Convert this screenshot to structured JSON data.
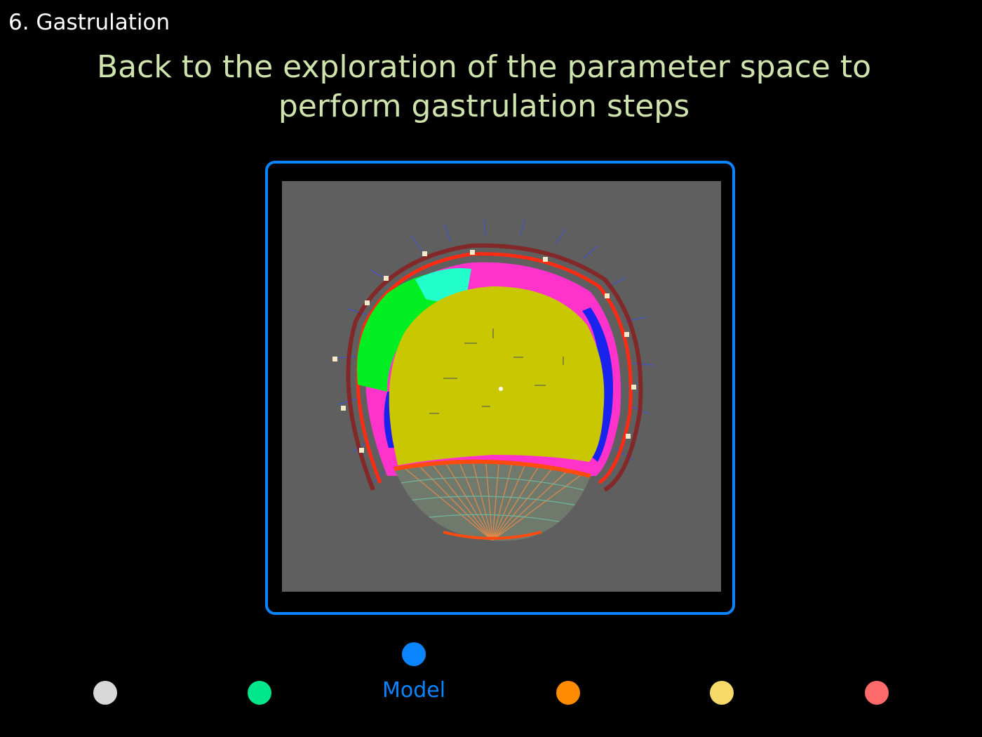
{
  "header": {
    "section": "6. Gastrulation",
    "title_line1": "Back to the exploration of the parameter space to",
    "title_line2": "perform gastrulation steps"
  },
  "colors": {
    "background": "#000000",
    "title": "#cfe3ad",
    "frame_border": "#0a84ff",
    "viewport_bg": "#5f5f5f",
    "active_nav": "#0a84ff"
  },
  "nav": {
    "active_label": "Model",
    "dots": [
      {
        "id": "nav-dot-1",
        "color": "#d8d8d8"
      },
      {
        "id": "nav-dot-2",
        "color": "#00e68a"
      },
      {
        "id": "nav-dot-model",
        "color": "#0a84ff",
        "active": true
      },
      {
        "id": "nav-dot-4",
        "color": "#ff8c00"
      },
      {
        "id": "nav-dot-5",
        "color": "#f7d96a"
      },
      {
        "id": "nav-dot-6",
        "color": "#ff6b6b"
      }
    ]
  },
  "visualization": {
    "icon": "embryo-simulation-render"
  }
}
